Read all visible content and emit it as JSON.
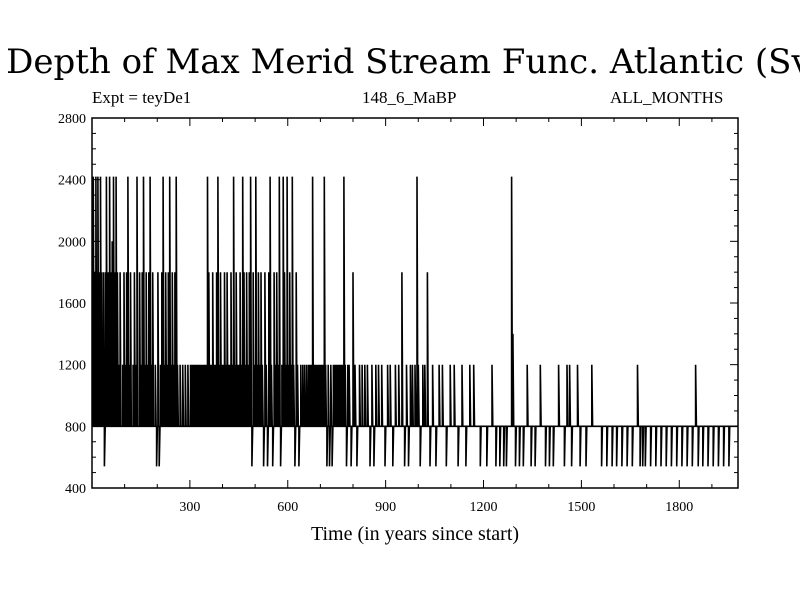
{
  "chart_data": {
    "type": "line",
    "title": "Depth of Max Merid Stream Func. Atlantic (Sv)",
    "subtitle_left": "Expt = teyDe1",
    "subtitle_center": "148_6_MaBP",
    "subtitle_right": "ALL_MONTHS",
    "xlabel": "Time (in years since start)",
    "ylabel": "",
    "xlim": [
      0,
      1980
    ],
    "ylim": [
      400,
      2800
    ],
    "xticks": [
      300,
      600,
      900,
      1200,
      1500,
      1800
    ],
    "yticks": [
      400,
      800,
      1200,
      1600,
      2000,
      2400,
      2800
    ],
    "grid": false,
    "series": [
      {
        "name": "",
        "color": "#000000",
        "baseline": 800,
        "spikes": [
          [
            2,
            1400
          ],
          [
            4,
            2420
          ],
          [
            6,
            1200
          ],
          [
            8,
            1800
          ],
          [
            10,
            1500
          ],
          [
            12,
            2420
          ],
          [
            14,
            1200
          ],
          [
            16,
            1800
          ],
          [
            18,
            2420
          ],
          [
            20,
            800
          ],
          [
            22,
            1400
          ],
          [
            24,
            1800
          ],
          [
            26,
            2420
          ],
          [
            28,
            1200
          ],
          [
            30,
            1800
          ],
          [
            32,
            800
          ],
          [
            34,
            1200
          ],
          [
            36,
            1800
          ],
          [
            38,
            540
          ],
          [
            40,
            1200
          ],
          [
            42,
            1800
          ],
          [
            44,
            2420
          ],
          [
            46,
            1200
          ],
          [
            48,
            800
          ],
          [
            50,
            1800
          ],
          [
            52,
            1200
          ],
          [
            54,
            2420
          ],
          [
            56,
            800
          ],
          [
            58,
            1800
          ],
          [
            60,
            1200
          ],
          [
            62,
            2000
          ],
          [
            64,
            1800
          ],
          [
            66,
            2420
          ],
          [
            68,
            1200
          ],
          [
            70,
            1800
          ],
          [
            72,
            800
          ],
          [
            74,
            2420
          ],
          [
            76,
            1200
          ],
          [
            78,
            1800
          ],
          [
            82,
            1200
          ],
          [
            86,
            1800
          ],
          [
            90,
            800
          ],
          [
            94,
            1200
          ],
          [
            98,
            1800
          ],
          [
            102,
            1200
          ],
          [
            106,
            1800
          ],
          [
            110,
            2420
          ],
          [
            114,
            1200
          ],
          [
            118,
            1800
          ],
          [
            122,
            800
          ],
          [
            126,
            1200
          ],
          [
            130,
            1800
          ],
          [
            134,
            1200
          ],
          [
            138,
            2420
          ],
          [
            142,
            800
          ],
          [
            146,
            1800
          ],
          [
            150,
            1200
          ],
          [
            154,
            1800
          ],
          [
            158,
            2420
          ],
          [
            162,
            1200
          ],
          [
            166,
            1800
          ],
          [
            170,
            1200
          ],
          [
            174,
            1800
          ],
          [
            178,
            2420
          ],
          [
            182,
            1200
          ],
          [
            186,
            1800
          ],
          [
            190,
            800
          ],
          [
            194,
            1200
          ],
          [
            198,
            540
          ],
          [
            202,
            1800
          ],
          [
            206,
            540
          ],
          [
            210,
            1200
          ],
          [
            214,
            1800
          ],
          [
            218,
            2420
          ],
          [
            222,
            1200
          ],
          [
            226,
            1800
          ],
          [
            230,
            1200
          ],
          [
            234,
            1800
          ],
          [
            238,
            2420
          ],
          [
            242,
            1200
          ],
          [
            246,
            1800
          ],
          [
            250,
            1200
          ],
          [
            254,
            1800
          ],
          [
            258,
            2420
          ],
          [
            262,
            1200
          ],
          [
            266,
            800
          ],
          [
            270,
            1200
          ],
          [
            274,
            800
          ],
          [
            278,
            1200
          ],
          [
            282,
            800
          ],
          [
            286,
            1200
          ],
          [
            290,
            800
          ],
          [
            294,
            1200
          ],
          [
            298,
            800
          ],
          [
            302,
            1200
          ],
          [
            306,
            1200
          ],
          [
            310,
            1200
          ],
          [
            314,
            1200
          ],
          [
            318,
            1200
          ],
          [
            322,
            1200
          ],
          [
            326,
            1200
          ],
          [
            330,
            1200
          ],
          [
            334,
            1200
          ],
          [
            338,
            1200
          ],
          [
            342,
            1200
          ],
          [
            346,
            1200
          ],
          [
            350,
            1200
          ],
          [
            354,
            2420
          ],
          [
            358,
            1800
          ],
          [
            362,
            1200
          ],
          [
            366,
            1200
          ],
          [
            370,
            1800
          ],
          [
            374,
            1200
          ],
          [
            378,
            1200
          ],
          [
            382,
            1800
          ],
          [
            386,
            2420
          ],
          [
            390,
            1200
          ],
          [
            394,
            1800
          ],
          [
            398,
            1200
          ],
          [
            402,
            1200
          ],
          [
            406,
            1800
          ],
          [
            410,
            1200
          ],
          [
            414,
            1800
          ],
          [
            418,
            1200
          ],
          [
            422,
            1200
          ],
          [
            426,
            1800
          ],
          [
            430,
            1200
          ],
          [
            434,
            2420
          ],
          [
            438,
            1200
          ],
          [
            442,
            1800
          ],
          [
            446,
            1200
          ],
          [
            450,
            1200
          ],
          [
            454,
            1800
          ],
          [
            458,
            1200
          ],
          [
            462,
            2420
          ],
          [
            466,
            1800
          ],
          [
            470,
            1200
          ],
          [
            474,
            1800
          ],
          [
            478,
            1200
          ],
          [
            482,
            1800
          ],
          [
            486,
            2420
          ],
          [
            490,
            540
          ],
          [
            494,
            1800
          ],
          [
            498,
            1200
          ],
          [
            502,
            2420
          ],
          [
            506,
            1200
          ],
          [
            510,
            1800
          ],
          [
            514,
            1200
          ],
          [
            518,
            1800
          ],
          [
            522,
            1200
          ],
          [
            526,
            540
          ],
          [
            530,
            1800
          ],
          [
            534,
            1200
          ],
          [
            538,
            540
          ],
          [
            542,
            1800
          ],
          [
            546,
            2420
          ],
          [
            550,
            1200
          ],
          [
            554,
            540
          ],
          [
            558,
            1800
          ],
          [
            562,
            1200
          ],
          [
            566,
            1800
          ],
          [
            570,
            1200
          ],
          [
            574,
            2420
          ],
          [
            578,
            540
          ],
          [
            582,
            1200
          ],
          [
            586,
            2420
          ],
          [
            590,
            1800
          ],
          [
            594,
            1200
          ],
          [
            598,
            2420
          ],
          [
            602,
            1200
          ],
          [
            606,
            1800
          ],
          [
            610,
            1200
          ],
          [
            614,
            2420
          ],
          [
            618,
            1200
          ],
          [
            622,
            540
          ],
          [
            626,
            1800
          ],
          [
            630,
            1200
          ],
          [
            634,
            540
          ],
          [
            640,
            1200
          ],
          [
            646,
            1200
          ],
          [
            652,
            1200
          ],
          [
            658,
            1200
          ],
          [
            664,
            1200
          ],
          [
            668,
            1200
          ],
          [
            672,
            1200
          ],
          [
            676,
            2420
          ],
          [
            680,
            1200
          ],
          [
            684,
            1200
          ],
          [
            688,
            1200
          ],
          [
            692,
            1200
          ],
          [
            696,
            1200
          ],
          [
            700,
            1200
          ],
          [
            704,
            1200
          ],
          [
            708,
            1200
          ],
          [
            712,
            2420
          ],
          [
            716,
            1200
          ],
          [
            720,
            540
          ],
          [
            724,
            1200
          ],
          [
            728,
            540
          ],
          [
            732,
            1200
          ],
          [
            736,
            540
          ],
          [
            740,
            1200
          ],
          [
            744,
            1200
          ],
          [
            748,
            1200
          ],
          [
            752,
            1200
          ],
          [
            756,
            1200
          ],
          [
            760,
            1200
          ],
          [
            764,
            1200
          ],
          [
            768,
            1200
          ],
          [
            772,
            2420
          ],
          [
            776,
            1200
          ],
          [
            780,
            540
          ],
          [
            784,
            1200
          ],
          [
            788,
            1200
          ],
          [
            794,
            540
          ],
          [
            800,
            1800
          ],
          [
            806,
            1200
          ],
          [
            812,
            540
          ],
          [
            820,
            1200
          ],
          [
            828,
            1200
          ],
          [
            836,
            1200
          ],
          [
            844,
            1200
          ],
          [
            852,
            540
          ],
          [
            858,
            1200
          ],
          [
            864,
            540
          ],
          [
            870,
            1200
          ],
          [
            878,
            1200
          ],
          [
            888,
            1200
          ],
          [
            898,
            540
          ],
          [
            906,
            1200
          ],
          [
            914,
            1200
          ],
          [
            922,
            540
          ],
          [
            930,
            1200
          ],
          [
            940,
            1200
          ],
          [
            950,
            1800
          ],
          [
            958,
            540
          ],
          [
            964,
            1200
          ],
          [
            970,
            540
          ],
          [
            976,
            1200
          ],
          [
            982,
            1200
          ],
          [
            990,
            1200
          ],
          [
            996,
            2420
          ],
          [
            1000,
            1200
          ],
          [
            1006,
            540
          ],
          [
            1014,
            1200
          ],
          [
            1020,
            1200
          ],
          [
            1028,
            1800
          ],
          [
            1036,
            540
          ],
          [
            1044,
            1200
          ],
          [
            1054,
            540
          ],
          [
            1064,
            1200
          ],
          [
            1074,
            1200
          ],
          [
            1086,
            540
          ],
          [
            1098,
            1200
          ],
          [
            1110,
            1200
          ],
          [
            1122,
            540
          ],
          [
            1134,
            1200
          ],
          [
            1146,
            540
          ],
          [
            1158,
            1200
          ],
          [
            1170,
            1200
          ],
          [
            1190,
            540
          ],
          [
            1210,
            540
          ],
          [
            1226,
            1200
          ],
          [
            1238,
            540
          ],
          [
            1250,
            540
          ],
          [
            1262,
            540
          ],
          [
            1270,
            540
          ],
          [
            1286,
            2420
          ],
          [
            1290,
            1400
          ],
          [
            1298,
            540
          ],
          [
            1310,
            540
          ],
          [
            1322,
            540
          ],
          [
            1334,
            1200
          ],
          [
            1346,
            540
          ],
          [
            1358,
            540
          ],
          [
            1374,
            1200
          ],
          [
            1390,
            540
          ],
          [
            1402,
            540
          ],
          [
            1414,
            540
          ],
          [
            1430,
            1200
          ],
          [
            1448,
            540
          ],
          [
            1456,
            1200
          ],
          [
            1464,
            1200
          ],
          [
            1470,
            540
          ],
          [
            1488,
            1200
          ],
          [
            1496,
            540
          ],
          [
            1514,
            540
          ],
          [
            1532,
            1200
          ],
          [
            1562,
            540
          ],
          [
            1578,
            540
          ],
          [
            1594,
            540
          ],
          [
            1608,
            540
          ],
          [
            1624,
            540
          ],
          [
            1640,
            540
          ],
          [
            1656,
            540
          ],
          [
            1672,
            1200
          ],
          [
            1680,
            540
          ],
          [
            1688,
            540
          ],
          [
            1696,
            540
          ],
          [
            1712,
            540
          ],
          [
            1728,
            540
          ],
          [
            1744,
            540
          ],
          [
            1760,
            540
          ],
          [
            1776,
            540
          ],
          [
            1792,
            540
          ],
          [
            1808,
            540
          ],
          [
            1824,
            540
          ],
          [
            1840,
            540
          ],
          [
            1850,
            1200
          ],
          [
            1858,
            540
          ],
          [
            1872,
            540
          ],
          [
            1888,
            540
          ],
          [
            1904,
            540
          ],
          [
            1920,
            540
          ],
          [
            1936,
            540
          ],
          [
            1952,
            540
          ]
        ]
      }
    ]
  }
}
